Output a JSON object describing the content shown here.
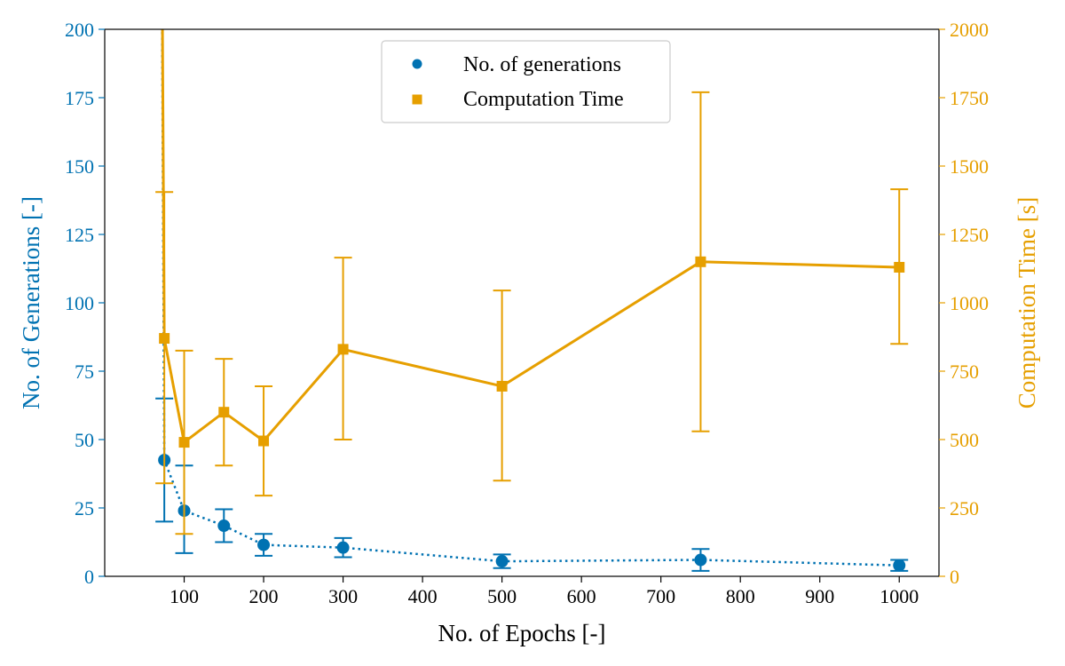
{
  "chart_data": {
    "type": "line",
    "x_label": "No. of Epochs [-]",
    "y_left_label": "No. of Generations [-]",
    "y_right_label": "Computation Time [s]",
    "x_range": [
      0,
      1050
    ],
    "y_left_range": [
      0,
      200
    ],
    "y_right_range": [
      0,
      2000
    ],
    "x_ticks": [
      "100",
      "200",
      "300",
      "400",
      "500",
      "600",
      "700",
      "800",
      "900",
      "1000"
    ],
    "y_left_ticks": [
      "0",
      "25",
      "50",
      "75",
      "100",
      "125",
      "150",
      "175",
      "200"
    ],
    "y_right_ticks": [
      "0",
      "250",
      "500",
      "750",
      "1000",
      "1250",
      "1500",
      "1750",
      "2000"
    ],
    "legend_position": "top-center",
    "series": [
      {
        "name": "No. of generations",
        "axis": "left",
        "color": "#0072B2",
        "marker": "circle",
        "line_style": "dotted",
        "leading_point": {
          "x": 70,
          "y": 200,
          "clipped": true
        },
        "points": [
          {
            "x": 75,
            "y": 42.5,
            "err_low": 20,
            "err_high": 65
          },
          {
            "x": 100,
            "y": 24,
            "err_low": 8.5,
            "err_high": 40.5
          },
          {
            "x": 150,
            "y": 18.5,
            "err_low": 12.5,
            "err_high": 24.5
          },
          {
            "x": 200,
            "y": 11.5,
            "err_low": 7.5,
            "err_high": 15.5
          },
          {
            "x": 300,
            "y": 10.5,
            "err_low": 7,
            "err_high": 14
          },
          {
            "x": 500,
            "y": 5.5,
            "err_low": 3,
            "err_high": 8
          },
          {
            "x": 750,
            "y": 6,
            "err_low": 2,
            "err_high": 10
          },
          {
            "x": 1000,
            "y": 4,
            "err_low": 2,
            "err_high": 6
          }
        ]
      },
      {
        "name": "Computation Time",
        "axis": "right",
        "color": "#E69F00",
        "marker": "square",
        "line_style": "solid",
        "leading_point": {
          "x": 70,
          "y": 2000,
          "clipped": true
        },
        "points": [
          {
            "x": 75,
            "y": 870,
            "err_low": 340,
            "err_high": 1405
          },
          {
            "x": 100,
            "y": 490,
            "err_low": 155,
            "err_high": 825
          },
          {
            "x": 150,
            "y": 600,
            "err_low": 405,
            "err_high": 795
          },
          {
            "x": 200,
            "y": 495,
            "err_low": 295,
            "err_high": 695
          },
          {
            "x": 300,
            "y": 830,
            "err_low": 500,
            "err_high": 1165
          },
          {
            "x": 500,
            "y": 695,
            "err_low": 350,
            "err_high": 1045
          },
          {
            "x": 750,
            "y": 1150,
            "err_low": 530,
            "err_high": 1770
          },
          {
            "x": 1000,
            "y": 1130,
            "err_low": 850,
            "err_high": 1415
          }
        ]
      }
    ]
  }
}
